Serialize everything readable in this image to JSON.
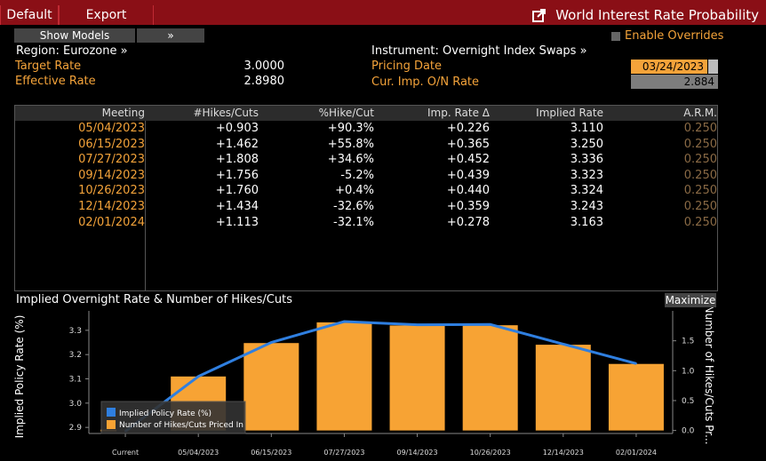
{
  "toolbar": {
    "default_label": "Default",
    "export_label": "Export",
    "title": "World Interest Rate Probability"
  },
  "controls": {
    "show_models": "Show Models",
    "expand": "»",
    "enable_overrides": "Enable Overrides",
    "region": "Region: Eurozone »",
    "instrument": "Instrument: Overnight Index Swaps »"
  },
  "info": {
    "target_rate_label": "Target Rate",
    "target_rate": "3.0000",
    "effective_rate_label": "Effective Rate",
    "effective_rate": "2.8980",
    "pricing_date_label": "Pricing Date",
    "pricing_date": "03/24/2023",
    "cur_imp_label": "Cur. Imp. O/N Rate",
    "cur_imp": "2.884"
  },
  "table": {
    "headers": [
      "Meeting",
      "#Hikes/Cuts",
      "%Hike/Cut",
      "Imp. Rate Δ",
      "Implied Rate",
      "A.R.M."
    ],
    "rows": [
      [
        "05/04/2023",
        "+0.903",
        "+90.3%",
        "+0.226",
        "3.110",
        "0.250"
      ],
      [
        "06/15/2023",
        "+1.462",
        "+55.8%",
        "+0.365",
        "3.250",
        "0.250"
      ],
      [
        "07/27/2023",
        "+1.808",
        "+34.6%",
        "+0.452",
        "3.336",
        "0.250"
      ],
      [
        "09/14/2023",
        "+1.756",
        "-5.2%",
        "+0.439",
        "3.323",
        "0.250"
      ],
      [
        "10/26/2023",
        "+1.760",
        "+0.4%",
        "+0.440",
        "3.324",
        "0.250"
      ],
      [
        "12/14/2023",
        "+1.434",
        "-32.6%",
        "+0.359",
        "3.243",
        "0.250"
      ],
      [
        "02/01/2024",
        "+1.113",
        "-32.1%",
        "+0.278",
        "3.163",
        "0.250"
      ]
    ]
  },
  "chart": {
    "title": "Implied Overnight Rate & Number of Hikes/Cuts",
    "maximize": "Maximize"
  },
  "chart_data": {
    "type": "bar",
    "categories": [
      "Current",
      "05/04/2023",
      "06/15/2023",
      "07/27/2023",
      "09/14/2023",
      "10/26/2023",
      "12/14/2023",
      "02/01/2024"
    ],
    "series": [
      {
        "name": "Number of Hikes/Cuts Priced In",
        "type": "bar",
        "axis": "right",
        "values": [
          0,
          0.903,
          1.462,
          1.808,
          1.756,
          1.76,
          1.434,
          1.113
        ]
      },
      {
        "name": "Implied Policy Rate (%)",
        "type": "line",
        "axis": "left",
        "values": [
          2.884,
          3.11,
          3.25,
          3.336,
          3.323,
          3.324,
          3.243,
          3.163
        ]
      }
    ],
    "ylabel": "Implied Policy Rate (%)",
    "y2label": "Number of Hikes/Cuts Pr...",
    "ylim": [
      2.875,
      3.38
    ],
    "y2lim": [
      -0.05,
      2.0
    ],
    "yticks": [
      "2.9",
      "3.0",
      "3.1",
      "3.2",
      "3.3"
    ],
    "y2ticks": [
      "0.0",
      "0.5",
      "1.0",
      "1.5"
    ],
    "colors": {
      "bar": "#f7a334",
      "line": "#2f7fe0"
    },
    "legend": "bottom-left"
  }
}
